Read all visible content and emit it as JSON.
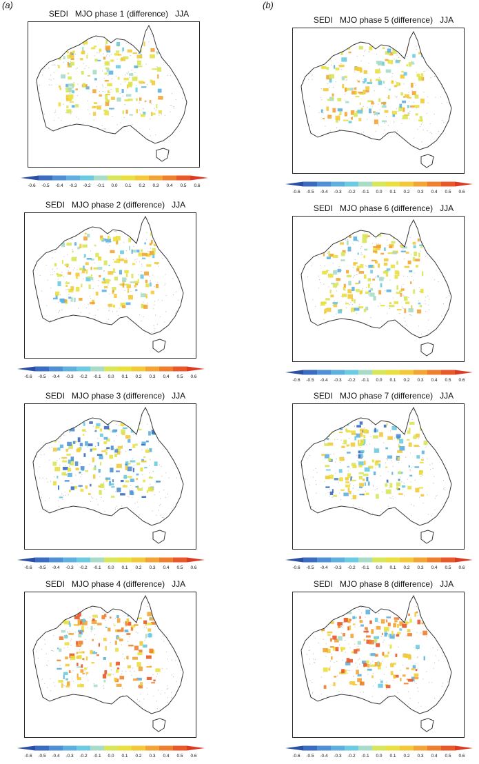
{
  "column_labels": [
    "(a)",
    "(b)"
  ],
  "colorbar": {
    "ticks": [
      "-0.6",
      "-0.5",
      "-0.4",
      "-0.3",
      "-0.2",
      "-0.1",
      "0.0",
      "0.1",
      "0.2",
      "0.3",
      "0.4",
      "0.5",
      "0.6"
    ],
    "colors": [
      "#2a4fa3",
      "#3a6cc0",
      "#4f8fd4",
      "#5fb0df",
      "#6ccbe0",
      "#a9dcc8",
      "#d7e65a",
      "#e9e040",
      "#f3c93a",
      "#f2a435",
      "#ee7f2f",
      "#e8582a",
      "#dd3a24"
    ]
  },
  "panels": [
    {
      "title": "SEDI   MJO phase 1 (difference)   JJA"
    },
    {
      "title": "SEDI   MJO phase 2 (difference)   JJA"
    },
    {
      "title": "SEDI   MJO phase 3 (difference)   JJA"
    },
    {
      "title": "SEDI   MJO phase 4 (difference)   JJA"
    },
    {
      "title": "SEDI   MJO phase 5 (difference)   JJA"
    },
    {
      "title": "SEDI   MJO phase 6 (difference)   JJA"
    },
    {
      "title": "SEDI   MJO phase 7 (difference)   JJA"
    },
    {
      "title": "SEDI   MJO phase 8 (difference)   JJA"
    }
  ]
}
